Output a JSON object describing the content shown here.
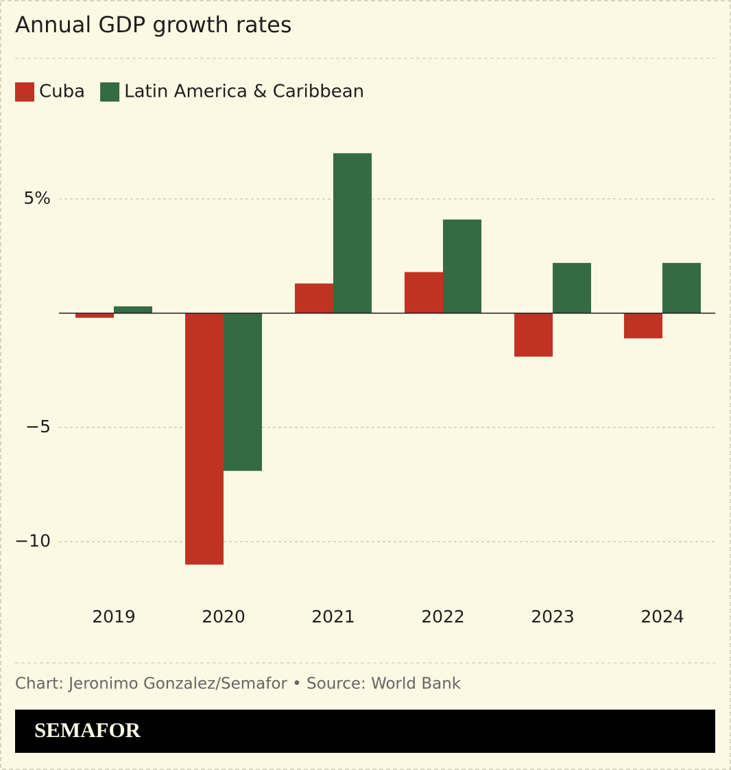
{
  "chart_data": {
    "type": "bar",
    "title": "Annual GDP growth rates",
    "categories": [
      "2019",
      "2020",
      "2021",
      "2022",
      "2023",
      "2024"
    ],
    "series": [
      {
        "name": "Cuba",
        "color": "#bf3323",
        "values": [
          -0.2,
          -11.0,
          1.3,
          1.8,
          -1.9,
          -1.1
        ]
      },
      {
        "name": "Latin America & Caribbean",
        "color": "#356b40",
        "values": [
          0.3,
          -6.9,
          7.0,
          4.1,
          2.2,
          2.2
        ]
      }
    ],
    "ylim": [
      -12,
      8
    ],
    "yticks": [
      {
        "value": 5,
        "label": "5%"
      },
      {
        "value": -5,
        "label": "−5"
      },
      {
        "value": -10,
        "label": "−10"
      }
    ],
    "grid": true,
    "source": "Chart: Jeronimo Gonzalez/Semafor • Source: World Bank",
    "logo": "SEMAFOR"
  }
}
